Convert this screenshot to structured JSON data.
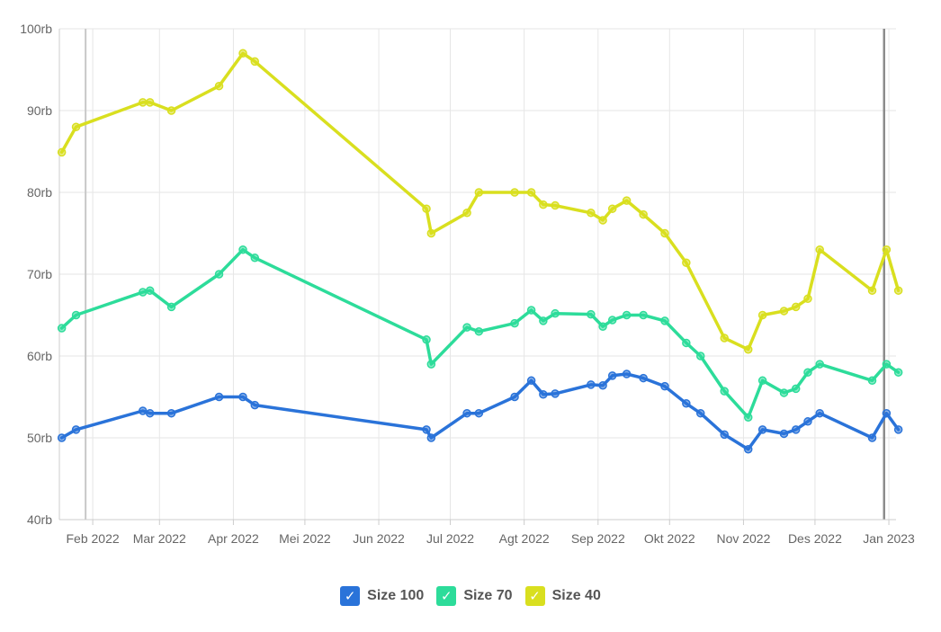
{
  "chart_data": {
    "type": "line",
    "y_axis": {
      "min": 40000,
      "max": 100000,
      "ticks": [
        40000,
        50000,
        60000,
        70000,
        80000,
        90000,
        100000
      ],
      "tick_labels": [
        "40rb",
        "50rb",
        "60rb",
        "70rb",
        "80rb",
        "90rb",
        "100rb"
      ]
    },
    "x_axis": {
      "min": "2022-01-18",
      "max": "2023-01-04",
      "ticks": [
        "2022-02-01",
        "2022-03-01",
        "2022-04-01",
        "2022-05-01",
        "2022-06-01",
        "2022-07-01",
        "2022-08-01",
        "2022-09-01",
        "2022-10-01",
        "2022-11-01",
        "2022-12-01",
        "2023-01-01"
      ],
      "tick_labels": [
        "Feb 2022",
        "Mar 2022",
        "Apr 2022",
        "Mei 2022",
        "Jun 2022",
        "Jul 2022",
        "Agt 2022",
        "Sep 2022",
        "Okt 2022",
        "Nov 2022",
        "Des 2022",
        "Jan 2023"
      ],
      "reference_lines": [
        "2022-01-29",
        "2022-12-30"
      ]
    },
    "grid": true,
    "legend_position": "bottom-center",
    "series": [
      {
        "name": "Size 100",
        "color": "#2a73d9",
        "points": [
          [
            "2022-01-19",
            50000
          ],
          [
            "2022-01-25",
            51000
          ],
          [
            "2022-02-22",
            53300
          ],
          [
            "2022-02-25",
            53000
          ],
          [
            "2022-03-06",
            53000
          ],
          [
            "2022-03-26",
            55000
          ],
          [
            "2022-04-05",
            55000
          ],
          [
            "2022-04-10",
            54000
          ],
          [
            "2022-06-21",
            51000
          ],
          [
            "2022-06-23",
            50000
          ],
          [
            "2022-07-08",
            53000
          ],
          [
            "2022-07-13",
            53000
          ],
          [
            "2022-07-28",
            55000
          ],
          [
            "2022-08-04",
            57000
          ],
          [
            "2022-08-09",
            55300
          ],
          [
            "2022-08-14",
            55400
          ],
          [
            "2022-08-29",
            56500
          ],
          [
            "2022-09-03",
            56400
          ],
          [
            "2022-09-07",
            57600
          ],
          [
            "2022-09-13",
            57800
          ],
          [
            "2022-09-20",
            57300
          ],
          [
            "2022-09-29",
            56300
          ],
          [
            "2022-10-08",
            54200
          ],
          [
            "2022-10-14",
            53000
          ],
          [
            "2022-10-24",
            50400
          ],
          [
            "2022-11-03",
            48600
          ],
          [
            "2022-11-09",
            51000
          ],
          [
            "2022-11-18",
            50500
          ],
          [
            "2022-11-23",
            51000
          ],
          [
            "2022-11-28",
            52000
          ],
          [
            "2022-12-03",
            53000
          ],
          [
            "2022-12-25",
            50000
          ],
          [
            "2022-12-31",
            53000
          ],
          [
            "2023-01-05",
            51000
          ]
        ]
      },
      {
        "name": "Size 70",
        "color": "#2ddc9a",
        "points": [
          [
            "2022-01-19",
            63400
          ],
          [
            "2022-01-25",
            65000
          ],
          [
            "2022-02-22",
            67800
          ],
          [
            "2022-02-25",
            68000
          ],
          [
            "2022-03-06",
            66000
          ],
          [
            "2022-03-26",
            70000
          ],
          [
            "2022-04-05",
            73000
          ],
          [
            "2022-04-10",
            72000
          ],
          [
            "2022-06-21",
            62000
          ],
          [
            "2022-06-23",
            59000
          ],
          [
            "2022-07-08",
            63500
          ],
          [
            "2022-07-13",
            63000
          ],
          [
            "2022-07-28",
            64000
          ],
          [
            "2022-08-04",
            65600
          ],
          [
            "2022-08-09",
            64300
          ],
          [
            "2022-08-14",
            65200
          ],
          [
            "2022-08-29",
            65100
          ],
          [
            "2022-09-03",
            63600
          ],
          [
            "2022-09-07",
            64400
          ],
          [
            "2022-09-13",
            65000
          ],
          [
            "2022-09-20",
            65000
          ],
          [
            "2022-09-29",
            64300
          ],
          [
            "2022-10-08",
            61600
          ],
          [
            "2022-10-14",
            60000
          ],
          [
            "2022-10-24",
            55700
          ],
          [
            "2022-11-03",
            52500
          ],
          [
            "2022-11-09",
            57000
          ],
          [
            "2022-11-18",
            55500
          ],
          [
            "2022-11-23",
            56000
          ],
          [
            "2022-11-28",
            58000
          ],
          [
            "2022-12-03",
            59000
          ],
          [
            "2022-12-25",
            57000
          ],
          [
            "2022-12-31",
            59000
          ],
          [
            "2023-01-05",
            58000
          ]
        ]
      },
      {
        "name": "Size 40",
        "color": "#d9df1f",
        "points": [
          [
            "2022-01-19",
            84900
          ],
          [
            "2022-01-25",
            88000
          ],
          [
            "2022-02-22",
            91000
          ],
          [
            "2022-02-25",
            91000
          ],
          [
            "2022-03-06",
            90000
          ],
          [
            "2022-03-26",
            93000
          ],
          [
            "2022-04-05",
            97000
          ],
          [
            "2022-04-10",
            96000
          ],
          [
            "2022-06-21",
            78000
          ],
          [
            "2022-06-23",
            75000
          ],
          [
            "2022-07-08",
            77500
          ],
          [
            "2022-07-13",
            80000
          ],
          [
            "2022-07-28",
            80000
          ],
          [
            "2022-08-04",
            80000
          ],
          [
            "2022-08-09",
            78500
          ],
          [
            "2022-08-14",
            78400
          ],
          [
            "2022-08-29",
            77500
          ],
          [
            "2022-09-03",
            76600
          ],
          [
            "2022-09-07",
            78000
          ],
          [
            "2022-09-13",
            79000
          ],
          [
            "2022-09-20",
            77300
          ],
          [
            "2022-09-29",
            75000
          ],
          [
            "2022-10-08",
            71400
          ],
          [
            "2022-10-24",
            62200
          ],
          [
            "2022-11-03",
            60800
          ],
          [
            "2022-11-09",
            65000
          ],
          [
            "2022-11-18",
            65500
          ],
          [
            "2022-11-23",
            66000
          ],
          [
            "2022-11-28",
            67000
          ],
          [
            "2022-12-03",
            73000
          ],
          [
            "2022-12-25",
            68000
          ],
          [
            "2022-12-31",
            73000
          ],
          [
            "2023-01-05",
            68000
          ]
        ]
      }
    ]
  },
  "legend": {
    "check_glyph": "✓",
    "items": [
      {
        "label": "Size 100",
        "color": "#2a73d9",
        "icon": "check-icon"
      },
      {
        "label": "Size 70",
        "color": "#2ddc9a",
        "icon": "check-icon"
      },
      {
        "label": "Size 40",
        "color": "#d9df1f",
        "icon": "check-icon"
      }
    ]
  }
}
